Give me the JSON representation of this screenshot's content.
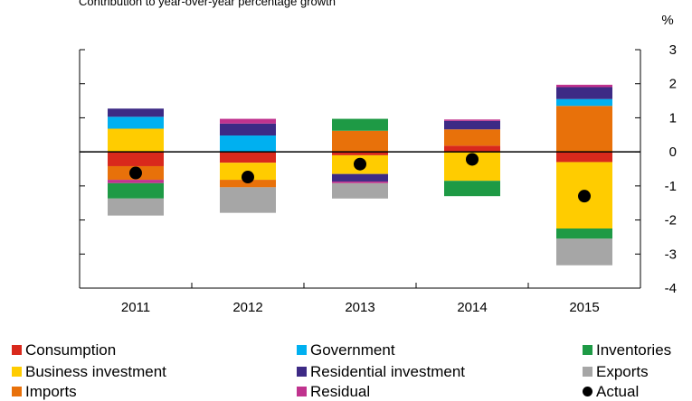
{
  "chart_data": {
    "type": "bar",
    "stacked": true,
    "title": "Contribution to year-over-year percentage growth",
    "unit": "%",
    "categories": [
      "2011",
      "2012",
      "2013",
      "2014",
      "2015"
    ],
    "ylim": [
      -4,
      3
    ],
    "yticks": [
      "3",
      "2",
      "1",
      "0",
      "-1",
      "-2",
      "-3",
      "-4"
    ],
    "series": [
      {
        "name": "Consumption",
        "color": "#d9291c",
        "values": [
          -0.42,
          -0.32,
          -0.1,
          0.18,
          -0.3
        ]
      },
      {
        "name": "Business investment",
        "color": "#ffcc00",
        "values": [
          0.68,
          -0.5,
          -0.55,
          -0.85,
          -1.95
        ]
      },
      {
        "name": "Imports",
        "color": "#e8710a",
        "values": [
          -0.4,
          -0.22,
          0.62,
          0.48,
          1.35
        ]
      },
      {
        "name": "Government",
        "color": "#00b0f0",
        "values": [
          0.35,
          0.48,
          0.0,
          0.0,
          0.2
        ]
      },
      {
        "name": "Residential investment",
        "color": "#3d2a85",
        "values": [
          0.24,
          0.35,
          -0.22,
          0.25,
          0.35
        ]
      },
      {
        "name": "Residual",
        "color": "#c0338e",
        "values": [
          -0.1,
          0.14,
          -0.05,
          0.04,
          0.07
        ]
      },
      {
        "name": "Inventories",
        "color": "#1e9a45",
        "values": [
          -0.45,
          0.0,
          0.35,
          -0.45,
          -0.3
        ]
      },
      {
        "name": "Exports",
        "color": "#a6a6a6",
        "values": [
          -0.5,
          -0.75,
          -0.45,
          0.0,
          -0.78
        ]
      }
    ],
    "actual": {
      "name": "Actual",
      "values": [
        -0.62,
        -0.74,
        -0.36,
        -0.22,
        -1.3
      ]
    },
    "legend_position": "bottom",
    "grid": false
  },
  "legend": [
    {
      "label": "Consumption",
      "color": "#d9291c"
    },
    {
      "label": "Government",
      "color": "#00b0f0"
    },
    {
      "label": "Inventories",
      "color": "#1e9a45"
    },
    {
      "label": "Business investment",
      "color": "#ffcc00"
    },
    {
      "label": "Residential investment",
      "color": "#3d2a85"
    },
    {
      "label": "Exports",
      "color": "#a6a6a6"
    },
    {
      "label": "Imports",
      "color": "#e8710a"
    },
    {
      "label": "Residual",
      "color": "#c0338e"
    },
    {
      "label": "Actual",
      "color": "#000000"
    }
  ]
}
